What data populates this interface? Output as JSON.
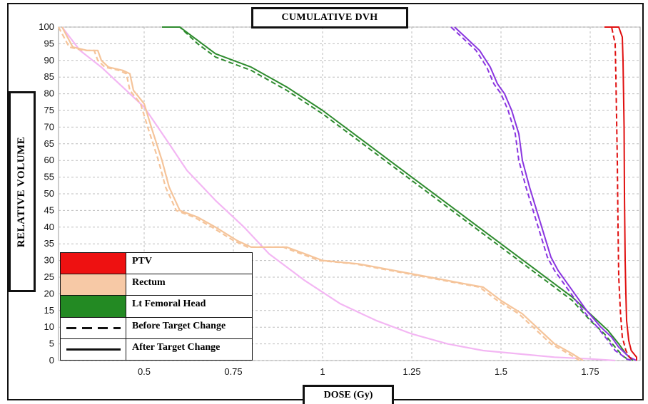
{
  "chart_data": {
    "type": "line",
    "title": "CUMULATIVE DVH",
    "xlabel": "DOSE  (Gy)",
    "ylabel": "RELATIVE VOLUME",
    "xlim": [
      0.26,
      1.89
    ],
    "ylim": [
      0,
      100
    ],
    "x_ticks": [
      0.5,
      0.75,
      1,
      1.25,
      1.5,
      1.75
    ],
    "x_tick_labels": [
      "0.5",
      "0.75",
      "1",
      "1.25",
      "1.5",
      "1.75"
    ],
    "y_ticks": [
      0,
      5,
      10,
      15,
      20,
      25,
      30,
      35,
      40,
      45,
      50,
      55,
      60,
      65,
      70,
      75,
      80,
      85,
      90,
      95,
      100
    ],
    "y_tick_labels": [
      "0",
      "5",
      "10",
      "15",
      "20",
      "25",
      "30",
      "35",
      "40",
      "45",
      "50",
      "55",
      "60",
      "65",
      "70",
      "75",
      "80",
      "85",
      "90",
      "95",
      "100"
    ],
    "grid": true,
    "legend_position": "bottom-left",
    "series": [
      {
        "structure": "PTV",
        "style": "solid",
        "color": "#e01010",
        "x": [
          1.8,
          1.83,
          1.84,
          1.842,
          1.845,
          1.846,
          1.848,
          1.85,
          1.852,
          1.858,
          1.865,
          1.88,
          1.88
        ],
        "y": [
          100,
          100,
          97,
          90,
          70,
          50,
          30,
          20,
          12,
          6,
          3,
          1,
          0
        ]
      },
      {
        "structure": "PTV",
        "style": "dashed",
        "color": "#e01010",
        "x": [
          1.79,
          1.81,
          1.82,
          1.822,
          1.826,
          1.828,
          1.83,
          1.835,
          1.84,
          1.85,
          1.86,
          1.87
        ],
        "y": [
          100,
          100,
          95,
          85,
          60,
          40,
          25,
          14,
          7,
          3,
          1,
          0
        ]
      },
      {
        "style": "solid",
        "color": "#8a35e0",
        "x": [
          1.37,
          1.4,
          1.44,
          1.47,
          1.49,
          1.51,
          1.53,
          1.55,
          1.56,
          1.58,
          1.6,
          1.62,
          1.64,
          1.66,
          1.7,
          1.74,
          1.78,
          1.81,
          1.83,
          1.85,
          1.86,
          1.88
        ],
        "y": [
          100,
          97,
          93,
          88,
          83,
          80,
          75,
          68,
          60,
          52,
          45,
          38,
          31,
          27,
          21,
          15,
          10,
          7,
          4,
          2,
          1,
          0
        ]
      },
      {
        "style": "dashed",
        "color": "#8a35e0",
        "x": [
          1.36,
          1.39,
          1.43,
          1.46,
          1.48,
          1.5,
          1.52,
          1.54,
          1.55,
          1.57,
          1.59,
          1.61,
          1.63,
          1.65,
          1.69,
          1.73,
          1.77,
          1.8,
          1.82,
          1.84,
          1.85,
          1.87
        ],
        "y": [
          100,
          97,
          93,
          88,
          83,
          80,
          75,
          68,
          60,
          52,
          45,
          38,
          31,
          27,
          21,
          15,
          10,
          6,
          3,
          1.5,
          0.5,
          0
        ]
      },
      {
        "structure": "Lt Femoral Head",
        "style": "solid",
        "color": "#2e8b2e",
        "x": [
          0.55,
          0.6,
          0.65,
          0.7,
          0.8,
          0.9,
          1.0,
          1.1,
          1.2,
          1.3,
          1.4,
          1.5,
          1.6,
          1.7,
          1.76,
          1.8,
          1.83,
          1.85,
          1.87
        ],
        "y": [
          100,
          100,
          96,
          92,
          88,
          82,
          75,
          67,
          59,
          51,
          43,
          35,
          27,
          19,
          13,
          9,
          5,
          2,
          0
        ]
      },
      {
        "structure": "Lt Femoral Head",
        "style": "dashed",
        "color": "#2e8b2e",
        "x": [
          0.55,
          0.6,
          0.65,
          0.7,
          0.8,
          0.9,
          1.0,
          1.1,
          1.2,
          1.3,
          1.4,
          1.5,
          1.6,
          1.7,
          1.75,
          1.79,
          1.82,
          1.84,
          1.86
        ],
        "y": [
          100,
          100,
          95,
          91,
          87,
          81,
          74,
          66,
          58,
          50,
          42,
          34,
          26,
          18,
          12,
          8,
          4,
          1.5,
          0
        ]
      },
      {
        "structure": "Rectum",
        "style": "solid",
        "color": "#f5c49a",
        "x": [
          0.27,
          0.3,
          0.34,
          0.37,
          0.38,
          0.4,
          0.44,
          0.46,
          0.47,
          0.5,
          0.52,
          0.55,
          0.57,
          0.6,
          0.65,
          0.7,
          0.76,
          0.8,
          0.9,
          0.95,
          1.0,
          1.1,
          1.2,
          1.3,
          1.4,
          1.45,
          1.5,
          1.56,
          1.6,
          1.65,
          1.7,
          1.73
        ],
        "y": [
          100,
          94,
          93,
          93,
          90,
          88,
          87,
          86,
          81,
          77,
          70,
          60,
          52,
          45,
          43,
          40,
          36,
          34,
          34,
          32,
          30,
          29,
          27,
          25,
          23,
          22,
          18,
          14,
          10,
          5,
          2,
          0
        ]
      },
      {
        "style": "dashed",
        "color": "#f5c49a",
        "x": [
          0.26,
          0.29,
          0.33,
          0.36,
          0.37,
          0.39,
          0.43,
          0.45,
          0.46,
          0.49,
          0.51,
          0.54,
          0.56,
          0.59,
          0.64,
          0.69,
          0.75,
          0.79,
          0.89,
          0.94,
          0.99,
          1.09,
          1.19,
          1.29,
          1.39,
          1.44,
          1.49,
          1.55,
          1.59,
          1.64,
          1.69,
          1.72
        ],
        "y": [
          100,
          94,
          93,
          93,
          90,
          88,
          87,
          86,
          81,
          77,
          70,
          60,
          52,
          45,
          43,
          40,
          36,
          34,
          34,
          32,
          30,
          29,
          27,
          25,
          23,
          22,
          18,
          14,
          10,
          5,
          2,
          0
        ]
      },
      {
        "style": "solid",
        "color": "#f3b6f3",
        "x": [
          0.27,
          0.32,
          0.38,
          0.42,
          0.5,
          0.57,
          0.62,
          0.7,
          0.78,
          0.85,
          0.95,
          1.05,
          1.15,
          1.25,
          1.35,
          1.45,
          1.55,
          1.65,
          1.75,
          1.82
        ],
        "y": [
          100,
          93,
          88,
          84,
          76,
          65,
          57,
          48,
          40,
          32,
          24,
          17,
          12,
          8,
          5,
          3,
          2,
          1,
          0.5,
          0
        ]
      }
    ]
  },
  "legend": {
    "items": [
      {
        "swatch_type": "fill",
        "color": "#ee1111",
        "label": "PTV"
      },
      {
        "swatch_type": "fill",
        "color": "#f7c9a6",
        "label": "Rectum"
      },
      {
        "swatch_type": "fill",
        "color": "#238a23",
        "label": "Lt Femoral Head"
      },
      {
        "swatch_type": "dashed",
        "color": "#111111",
        "label": "Before Target Change"
      },
      {
        "swatch_type": "solid",
        "color": "#111111",
        "label": "After Target Change"
      }
    ]
  }
}
